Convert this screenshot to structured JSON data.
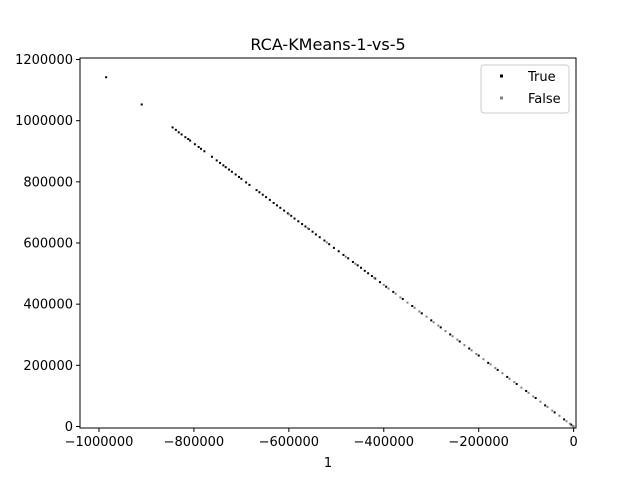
{
  "chart_data": {
    "type": "scatter",
    "title": "RCA-KMeans-1-vs-5",
    "xlabel": "1",
    "ylabel": "",
    "xlim": [
      -1040000,
      5000
    ],
    "ylim": [
      -5000,
      1205000
    ],
    "xticks": [
      -1000000,
      -800000,
      -600000,
      -400000,
      -200000,
      0
    ],
    "xtick_labels": [
      "−1000000",
      "−800000",
      "−600000",
      "−400000",
      "−200000",
      "0"
    ],
    "yticks": [
      0,
      200000,
      400000,
      600000,
      800000,
      1000000,
      1200000
    ],
    "ytick_labels": [
      "0",
      "200000",
      "400000",
      "600000",
      "800000",
      "1000000",
      "1200000"
    ],
    "grid": false,
    "legend_position": "top-right",
    "series": [
      {
        "name": "True",
        "color": "#000000",
        "points": [
          [
            -985000,
            1142000
          ],
          [
            -910000,
            1053000
          ],
          [
            -845000,
            978000
          ],
          [
            -838000,
            970000
          ],
          [
            -832000,
            962000
          ],
          [
            -826000,
            955000
          ],
          [
            -818000,
            946000
          ],
          [
            -812000,
            940000
          ],
          [
            -808000,
            935000
          ],
          [
            -798000,
            923000
          ],
          [
            -790000,
            914000
          ],
          [
            -785000,
            908000
          ],
          [
            -778000,
            900000
          ],
          [
            -762000,
            882000
          ],
          [
            -752000,
            870000
          ],
          [
            -745000,
            862000
          ],
          [
            -738000,
            854000
          ],
          [
            -733000,
            848000
          ],
          [
            -726000,
            840000
          ],
          [
            -720000,
            833000
          ],
          [
            -712000,
            824000
          ],
          [
            -705000,
            816000
          ],
          [
            -700000,
            810000
          ],
          [
            -690000,
            798000
          ],
          [
            -683000,
            790000
          ],
          [
            -668000,
            773000
          ],
          [
            -662000,
            766000
          ],
          [
            -655000,
            758000
          ],
          [
            -648000,
            750000
          ],
          [
            -640000,
            741000
          ],
          [
            -632000,
            731000
          ],
          [
            -625000,
            723000
          ],
          [
            -618000,
            715000
          ],
          [
            -610000,
            706000
          ],
          [
            -602000,
            697000
          ],
          [
            -595000,
            689000
          ],
          [
            -588000,
            680000
          ],
          [
            -580000,
            671000
          ],
          [
            -572000,
            662000
          ],
          [
            -565000,
            654000
          ],
          [
            -558000,
            646000
          ],
          [
            -550000,
            637000
          ],
          [
            -543000,
            628000
          ],
          [
            -535000,
            619000
          ],
          [
            -525000,
            608000
          ],
          [
            -515000,
            596000
          ],
          [
            -505000,
            584000
          ],
          [
            -495000,
            573000
          ],
          [
            -485000,
            561000
          ],
          [
            -475000,
            550000
          ],
          [
            -465000,
            538000
          ],
          [
            -455000,
            527000
          ],
          [
            -448000,
            519000
          ],
          [
            -440000,
            509000
          ],
          [
            -433000,
            501000
          ],
          [
            -425000,
            492000
          ],
          [
            -418000,
            484000
          ],
          [
            -408000,
            472000
          ],
          [
            -395000,
            457000
          ],
          [
            -380000,
            440000
          ],
          [
            -360000,
            417000
          ],
          [
            -340000,
            394000
          ],
          [
            -320000,
            370000
          ],
          [
            -300000,
            347000
          ],
          [
            -280000,
            324000
          ],
          [
            -260000,
            301000
          ],
          [
            -240000,
            278000
          ],
          [
            -220000,
            255000
          ],
          [
            -200000,
            232000
          ],
          [
            -180000,
            208000
          ],
          [
            -160000,
            185000
          ],
          [
            -140000,
            162000
          ],
          [
            -120000,
            139000
          ],
          [
            -100000,
            116000
          ],
          [
            -80000,
            93000
          ],
          [
            -60000,
            69000
          ],
          [
            -40000,
            46000
          ],
          [
            -20000,
            23000
          ],
          [
            -5000,
            6000
          ]
        ]
      },
      {
        "name": "False",
        "color": "#808080",
        "points": [
          [
            -600000,
            694000
          ],
          [
            -560000,
            648000
          ],
          [
            -520000,
            602000
          ],
          [
            -480000,
            555000
          ],
          [
            -460000,
            532000
          ],
          [
            -420000,
            486000
          ],
          [
            -400000,
            463000
          ],
          [
            -390000,
            451000
          ],
          [
            -375000,
            434000
          ],
          [
            -365000,
            422000
          ],
          [
            -350000,
            405000
          ],
          [
            -335000,
            388000
          ],
          [
            -325000,
            376000
          ],
          [
            -310000,
            359000
          ],
          [
            -295000,
            341000
          ],
          [
            -285000,
            330000
          ],
          [
            -270000,
            312000
          ],
          [
            -255000,
            295000
          ],
          [
            -245000,
            284000
          ],
          [
            -230000,
            266000
          ],
          [
            -215000,
            249000
          ],
          [
            -205000,
            237000
          ],
          [
            -190000,
            220000
          ],
          [
            -175000,
            203000
          ],
          [
            -165000,
            191000
          ],
          [
            -150000,
            174000
          ],
          [
            -135000,
            156000
          ],
          [
            -125000,
            145000
          ],
          [
            -110000,
            127000
          ],
          [
            -95000,
            110000
          ],
          [
            -85000,
            98000
          ],
          [
            -70000,
            81000
          ],
          [
            -55000,
            64000
          ],
          [
            -45000,
            52000
          ],
          [
            -30000,
            35000
          ],
          [
            -15000,
            17000
          ],
          [
            -8000,
            9000
          ],
          [
            -2000,
            2000
          ],
          [
            0,
            0
          ]
        ]
      }
    ]
  }
}
